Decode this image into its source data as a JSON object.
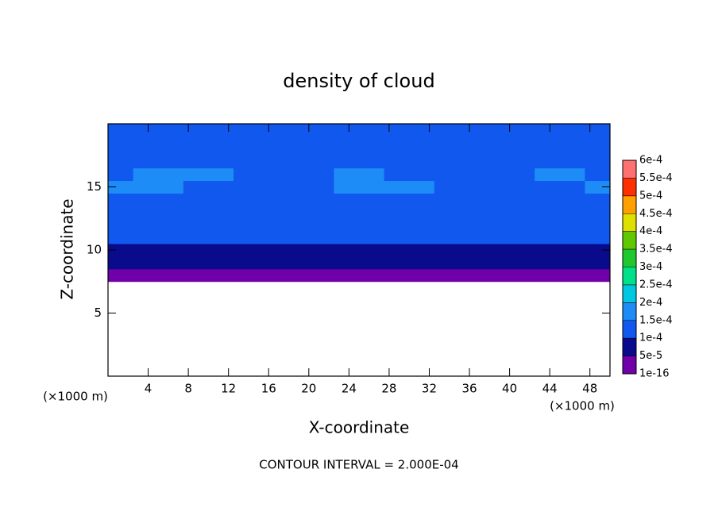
{
  "chart_data": {
    "type": "contour",
    "title": "density of cloud",
    "x_label": "X-coordinate",
    "y_label": "Z-coordinate",
    "x_unit": "(×1000 m)",
    "y_unit": "(×1000 m)",
    "note": "CONTOUR INTERVAL = 2.000E-04",
    "xlim": [
      0,
      50
    ],
    "ylim": [
      0,
      20
    ],
    "xticks": [
      4,
      8,
      12,
      16,
      20,
      24,
      28,
      32,
      36,
      40,
      44,
      48
    ],
    "yticks": [
      5,
      10,
      15
    ],
    "x": [
      0,
      5,
      10,
      15,
      20,
      25,
      30,
      35,
      40,
      45,
      50
    ],
    "y": [
      8,
      9,
      10,
      11,
      12,
      13,
      14,
      15,
      16,
      17,
      18,
      19,
      20
    ],
    "values": [
      [
        3e-05,
        3e-05,
        3e-05,
        3e-05,
        3e-05,
        3e-05,
        3e-05,
        3e-05,
        3e-05,
        3e-05,
        3e-05
      ],
      [
        7e-05,
        7e-05,
        7e-05,
        7e-05,
        7e-05,
        7e-05,
        7e-05,
        7e-05,
        7e-05,
        7e-05,
        7e-05
      ],
      [
        8e-05,
        8e-05,
        8e-05,
        8e-05,
        8e-05,
        8e-05,
        8e-05,
        8e-05,
        8e-05,
        8e-05,
        8e-05
      ],
      [
        0.000105,
        0.000105,
        0.000105,
        0.000105,
        0.000105,
        0.000105,
        0.000105,
        0.000105,
        0.000105,
        0.000105,
        0.000105
      ],
      [
        0.00012,
        0.00012,
        0.00012,
        0.00012,
        0.00012,
        0.00012,
        0.00012,
        0.00012,
        0.00012,
        0.00012,
        0.00012
      ],
      [
        0.00013,
        0.00013,
        0.00013,
        0.00013,
        0.00013,
        0.00013,
        0.00013,
        0.00013,
        0.00013,
        0.00013,
        0.00013
      ],
      [
        0.00014,
        0.00014,
        0.00014,
        0.00014,
        0.00014,
        0.00014,
        0.00014,
        0.00014,
        0.00014,
        0.00014,
        0.00014
      ],
      [
        0.000155,
        0.000155,
        0.000145,
        0.000145,
        0.000145,
        0.000155,
        0.000155,
        0.000145,
        0.000145,
        0.000145,
        0.000155
      ],
      [
        0.000145,
        0.000155,
        0.000155,
        0.000145,
        0.000145,
        0.000155,
        0.000145,
        0.000145,
        0.000145,
        0.000155,
        0.000145
      ],
      [
        0.00014,
        0.00014,
        0.00014,
        0.00014,
        0.00014,
        0.00014,
        0.00014,
        0.00014,
        0.00014,
        0.00014,
        0.00014
      ],
      [
        0.00013,
        0.00013,
        0.00013,
        0.00013,
        0.00013,
        0.00013,
        0.00013,
        0.00013,
        0.00013,
        0.00013,
        0.00013
      ],
      [
        0.00012,
        0.00012,
        0.00012,
        0.00012,
        0.00012,
        0.00012,
        0.00012,
        0.00012,
        0.00012,
        0.00012,
        0.00012
      ],
      [
        0.000115,
        0.000115,
        0.000115,
        0.000115,
        0.000115,
        0.000115,
        0.000115,
        0.000115,
        0.000115,
        0.000115,
        0.000115
      ]
    ],
    "colorbar": {
      "ticks": [
        {
          "value": 1e-16,
          "label": "1e-16"
        },
        {
          "value": 5e-05,
          "label": "5e-5"
        },
        {
          "value": 0.0001,
          "label": "1e-4"
        },
        {
          "value": 0.00015,
          "label": "1.5e-4"
        },
        {
          "value": 0.0002,
          "label": "2e-4"
        },
        {
          "value": 0.00025,
          "label": "2.5e-4"
        },
        {
          "value": 0.0003,
          "label": "3e-4"
        },
        {
          "value": 0.00035,
          "label": "3.5e-4"
        },
        {
          "value": 0.0004,
          "label": "4e-4"
        },
        {
          "value": 0.00045,
          "label": "4.5e-4"
        },
        {
          "value": 0.0005,
          "label": "5e-4"
        },
        {
          "value": 0.00055,
          "label": "5.5e-4"
        },
        {
          "value": 0.0006,
          "label": "6e-4"
        }
      ],
      "colors": [
        "#7000a8",
        "#0a0a8c",
        "#1058ee",
        "#1e8cf6",
        "#00c8e0",
        "#00e08a",
        "#20c830",
        "#60c800",
        "#e0e000",
        "#ffa000",
        "#ff3000",
        "#ff7070"
      ]
    }
  }
}
